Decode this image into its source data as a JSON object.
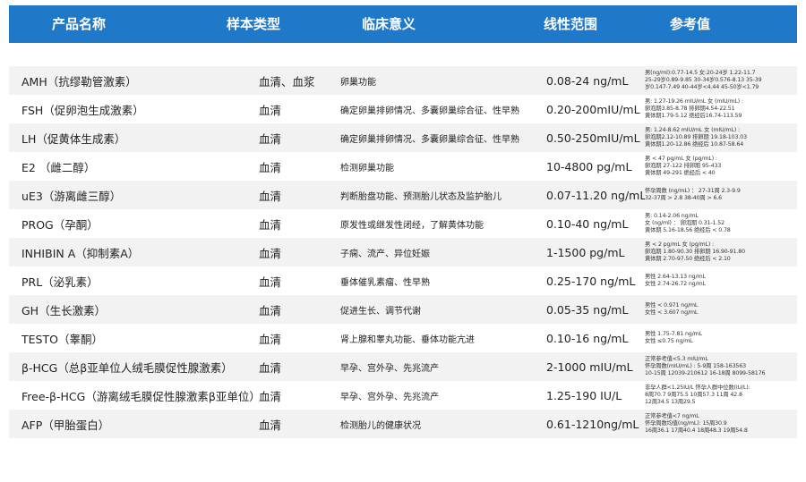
{
  "headers": {
    "product": "产品名称",
    "sample": "样本类型",
    "clinical": "临床意义",
    "range": "线性范围",
    "reference": "参考值"
  },
  "rows": [
    {
      "product": "AMH（抗缪勒管激素）",
      "sample": "血清、血浆",
      "clinical": "卵巢功能",
      "range": "0.08-24 ng/mL",
      "reference": "男(ng/ml):0.77-14.5 女:20-24岁 1.22-11.7\n25-29岁0.89-9.85 30-34岁0.576-8.13 35-39\n岁0.147-7.49 40-44岁<4.44 45-50岁<1.79"
    },
    {
      "product": "FSH（促卵泡生成激素）",
      "sample": "血清",
      "clinical": "确定卵巢排卵情况、多囊卵巢综合征、性早熟",
      "range": "0.20-200mIU/mL",
      "reference": "男: 1.27-19.26 mIU/mL 女 (mIU/mL) :\n卵泡期3.85-8.78 排卵期4.54-22.51\n黄体期1.79-5.12 绝经后16.74-113.59"
    },
    {
      "product": "LH（促黄体生成素）",
      "sample": "血清",
      "clinical": "确定卵巢排卵情况、多囊卵巢综合征、性早熟",
      "range": "0.50-250mIU/mL",
      "reference": "男: 1.24-8.62 mIU/mL 女 (mIU/mL) :\n卵泡期2.12-10.89 排卵期 19.18-103.03\n黄体期1.20-12.86 绝经后 10.87-58.64"
    },
    {
      "product": "E2 （雌二醇）",
      "sample": "血清",
      "clinical": "检测卵巢功能",
      "range": "10-4800 pg/mL",
      "reference": "男 < 47 pg/mL 女 (pg/mL) :\n卵泡期 27-122 排卵期 95-433\n黄体期 49-291 绝经后 < 40"
    },
    {
      "product": "uE3（游离雌三醇）",
      "sample": "血清",
      "clinical": "判断胎盘功能、预测胎儿状态及监护胎儿",
      "range": "0.07-11.20 ng/mL",
      "reference": "怀孕周数 (ng/mL) ： 27-31周 2.3-9.9\n32-37周 > 2.8 38-40周 > 6.6"
    },
    {
      "product": "PROG（孕酮）",
      "sample": "血清",
      "clinical": "原发性或继发性闭经，了解黄体功能",
      "range": "0.10-40 ng/mL",
      "reference": "男: 0.14-2.06 ng/mL\n女 (ng/ml) ： 卵泡期 0.31-1.52\n黄体期 5.16-18.56 绝经后 < 0.78"
    },
    {
      "product": "INHIBIN A（抑制素A）",
      "sample": "血清",
      "clinical": "子痫、流产、异位妊娠",
      "range": "1-1500 pg/mL",
      "reference": "男 < 2 pg/mL 女 (pg/mL) :\n卵泡期 1.80-90.30 排卵期 16.90-91.80\n黄体期 2.70-97.50 绝经后 < 2.10"
    },
    {
      "product": "PRL（泌乳素）",
      "sample": "血清",
      "clinical": "垂体催乳素瘤、性早熟",
      "range": "0.25-170 ng/mL",
      "reference": "男性 2.64-13.13 ng/mL\n女性 2.74-26.72 ng/mL"
    },
    {
      "product": "GH（生长激素）",
      "sample": "血清",
      "clinical": "促进生长、调节代谢",
      "range": "0.05-35 ng/mL",
      "reference": "男性 < 0.971 ng/mL\n女性 < 3.607 ng/mL"
    },
    {
      "product": "TESTO（睾酮）",
      "sample": "血清",
      "clinical": "肾上腺和睾丸功能、垂体功能亢进",
      "range": "0.10-16 ng/mL",
      "reference": "男性 1.75-7.81 ng/mL\n女性 ≤0.75 ng/mL"
    },
    {
      "product": "β-HCG（总β亚单位人绒毛膜促性腺激素）",
      "sample": "血清",
      "clinical": "早孕、宫外孕、先兆流产",
      "range": "2-1000 mIU/mL",
      "reference": "正常参考值<5.3 mIU/mL\n怀孕周数(mIU/mL) : 5-9周 158-163563\n10-15周 12039-210612 16-18周 8099-58176"
    },
    {
      "product": "Free-β-HCG（游离绒毛膜促性腺激素β亚单位）",
      "sample": "血清",
      "clinical": "早孕、宫外孕、先兆流产",
      "range": "1.25-190 IU/L",
      "reference": "非孕人群<1.25IU/L 怀孕人群中位数(IU/L):\n8周70.7 9周75.5 10周57.3 11周 42.8\n12周34.5 13周29.5"
    },
    {
      "product": "AFP（甲胎蛋白）",
      "sample": "血清",
      "clinical": "检测胎儿的健康状况",
      "range": "0.61-1210ng/mL",
      "reference": "正常参考值<7 ng/mL\n怀孕周数均值(ng/mL): 15周30.9\n16周36.1 17周40.4 18周48.3 19周54.8"
    }
  ]
}
